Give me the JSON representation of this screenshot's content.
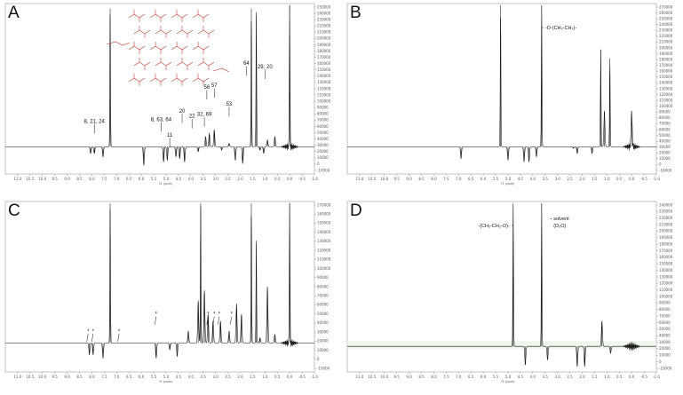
{
  "panels": [
    {
      "letter": "A",
      "chart_data": {
        "type": "line",
        "xlabel": "f1 (ppm)",
        "xlim": [
          -1.0,
          11.5
        ],
        "x_reversed": true,
        "x_ticks": [
          "11.0",
          "10.5",
          "10.0",
          "9.5",
          "9.0",
          "8.5",
          "8.0",
          "7.5",
          "7.0",
          "6.5",
          "6.0",
          "5.5",
          "5.0",
          "4.5",
          "4.0",
          "3.5",
          "3.0",
          "2.5",
          "2.0",
          "1.5",
          "1.0",
          "0.5",
          "0.0",
          "-0.5",
          "-1.0"
        ],
        "y_ticks": [
          "-10000",
          "0",
          "10000",
          "20000",
          "30000",
          "40000",
          "50000",
          "60000",
          "70000",
          "80000",
          "90000",
          "100000",
          "110000",
          "120000",
          "130000",
          "140000",
          "150000",
          "160000",
          "170000",
          "180000",
          "190000",
          "200000",
          "210000",
          "220000",
          "230000",
          "240000",
          "250000"
        ],
        "baseline": 0.16,
        "peaks": [
          {
            "x": 8.05,
            "h": 0.12
          },
          {
            "x": 7.9,
            "h": 0.12
          },
          {
            "x": 7.55,
            "h": 0.1
          },
          {
            "x": 7.26,
            "h": 0.97
          },
          {
            "x": 5.9,
            "h": 0.05
          },
          {
            "x": 5.1,
            "h": 0.07
          },
          {
            "x": 4.95,
            "h": 0.08
          },
          {
            "x": 4.6,
            "h": 0.1
          },
          {
            "x": 4.45,
            "h": 0.09
          },
          {
            "x": 4.25,
            "h": 0.07
          },
          {
            "x": 3.7,
            "h": 0.13
          },
          {
            "x": 3.4,
            "h": 0.22
          },
          {
            "x": 3.25,
            "h": 0.24
          },
          {
            "x": 3.05,
            "h": 0.26
          },
          {
            "x": 2.75,
            "h": 0.14
          },
          {
            "x": 2.45,
            "h": 0.18
          },
          {
            "x": 2.2,
            "h": 0.08
          },
          {
            "x": 1.9,
            "h": 0.06
          },
          {
            "x": 1.55,
            "h": 0.97
          },
          {
            "x": 1.35,
            "h": 0.95
          },
          {
            "x": 1.2,
            "h": 0.14
          },
          {
            "x": 1.05,
            "h": 0.12
          },
          {
            "x": 0.9,
            "h": 0.2
          },
          {
            "x": 0.6,
            "h": 0.22
          },
          {
            "x": 0.0,
            "h": 0.99
          }
        ],
        "annotations": [
          {
            "text": "8, 21, 24",
            "x": 7.9,
            "y": 0.3
          },
          {
            "text": "8, 63, 64",
            "x": 5.2,
            "y": 0.31
          },
          {
            "text": "11",
            "x": 4.85,
            "y": 0.22
          },
          {
            "text": "20",
            "x": 4.35,
            "y": 0.36
          },
          {
            "text": "22",
            "x": 3.95,
            "y": 0.33
          },
          {
            "text": "32, 69",
            "x": 3.45,
            "y": 0.34
          },
          {
            "text": "56",
            "x": 3.35,
            "y": 0.5
          },
          {
            "text": "57",
            "x": 3.05,
            "y": 0.51
          },
          {
            "text": "53",
            "x": 2.45,
            "y": 0.4
          },
          {
            "text": "64",
            "x": 1.75,
            "y": 0.64
          },
          {
            "text": "29, 20",
            "x": 1.0,
            "y": 0.62
          }
        ]
      }
    },
    {
      "letter": "B",
      "chart_data": {
        "type": "line",
        "xlabel": "f1 (ppm)",
        "xlim": [
          -1.0,
          11.5
        ],
        "x_reversed": true,
        "x_ticks": [
          "11.0",
          "10.5",
          "10.0",
          "9.5",
          "9.0",
          "8.5",
          "8.0",
          "7.5",
          "7.0",
          "6.5",
          "6.0",
          "5.5",
          "5.0",
          "4.5",
          "4.0",
          "3.5",
          "3.0",
          "2.5",
          "2.0",
          "1.5",
          "1.0",
          "0.5",
          "0.0",
          "-0.5",
          "-1.0"
        ],
        "y_ticks": [
          "-10000",
          "0",
          "10000",
          "20000",
          "30000",
          "40000",
          "50000",
          "60000",
          "70000",
          "80000",
          "90000",
          "100000",
          "110000",
          "120000",
          "130000",
          "140000",
          "150000",
          "160000",
          "170000",
          "180000",
          "190000",
          "200000",
          "210000",
          "220000",
          "230000",
          "240000",
          "250000",
          "260000",
          "270000"
        ],
        "baseline": 0.16,
        "peaks": [
          {
            "x": 7.26,
            "h": 0.16
          },
          {
            "x": 6.9,
            "h": 0.09
          },
          {
            "x": 5.3,
            "h": 0.99
          },
          {
            "x": 5.0,
            "h": 0.08
          },
          {
            "x": 4.35,
            "h": 0.07
          },
          {
            "x": 4.15,
            "h": 0.07
          },
          {
            "x": 3.85,
            "h": 0.1
          },
          {
            "x": 3.64,
            "h": 0.99
          },
          {
            "x": 3.4,
            "h": 0.16
          },
          {
            "x": 2.35,
            "h": 0.15
          },
          {
            "x": 2.2,
            "h": 0.12
          },
          {
            "x": 1.6,
            "h": 0.12
          },
          {
            "x": 1.35,
            "h": 0.16
          },
          {
            "x": 1.25,
            "h": 0.73
          },
          {
            "x": 1.1,
            "h": 0.37
          },
          {
            "x": 0.88,
            "h": 0.68
          },
          {
            "x": 0.0,
            "h": 0.37
          }
        ],
        "annotations": [
          {
            "text": "-O-(CH₂-CH₂)-",
            "x": 3.64,
            "y": 0.85
          }
        ]
      }
    },
    {
      "letter": "C",
      "chart_data": {
        "type": "line",
        "xlabel": "f1 (ppm)",
        "xlim": [
          -1.0,
          11.5
        ],
        "x_reversed": true,
        "x_ticks": [
          "11.0",
          "10.5",
          "10.0",
          "9.5",
          "9.0",
          "8.5",
          "8.0",
          "7.5",
          "7.0",
          "6.5",
          "6.0",
          "5.5",
          "5.0",
          "4.5",
          "4.0",
          "3.5",
          "3.0",
          "2.5",
          "2.0",
          "1.5",
          "1.0",
          "0.5",
          "0.0",
          "-0.5",
          "-1.0"
        ],
        "y_ticks": [
          "-10000",
          "0",
          "10000",
          "20000",
          "30000",
          "40000",
          "50000",
          "60000",
          "70000",
          "80000",
          "90000",
          "100000",
          "110000",
          "120000",
          "130000",
          "140000",
          "150000",
          "160000",
          "170000"
        ],
        "baseline": 0.17,
        "peaks": [
          {
            "x": 8.1,
            "h": 0.1
          },
          {
            "x": 7.95,
            "h": 0.1
          },
          {
            "x": 7.55,
            "h": 0.08
          },
          {
            "x": 7.26,
            "h": 0.99
          },
          {
            "x": 5.4,
            "h": 0.08
          },
          {
            "x": 4.85,
            "h": 0.13
          },
          {
            "x": 4.55,
            "h": 0.09
          },
          {
            "x": 4.1,
            "h": 0.24
          },
          {
            "x": 3.7,
            "h": 0.42
          },
          {
            "x": 3.6,
            "h": 0.99
          },
          {
            "x": 3.45,
            "h": 0.48
          },
          {
            "x": 3.3,
            "h": 0.34
          },
          {
            "x": 3.1,
            "h": 0.3
          },
          {
            "x": 2.8,
            "h": 0.3
          },
          {
            "x": 2.45,
            "h": 0.24
          },
          {
            "x": 2.15,
            "h": 0.4
          },
          {
            "x": 1.95,
            "h": 0.34
          },
          {
            "x": 1.55,
            "h": 0.99
          },
          {
            "x": 1.35,
            "h": 0.77
          },
          {
            "x": 1.2,
            "h": 0.2
          },
          {
            "x": 0.9,
            "h": 0.5
          },
          {
            "x": 0.6,
            "h": 0.22
          },
          {
            "x": 0.0,
            "h": 0.99
          }
        ],
        "annotations": [
          {
            "text": "*",
            "x": 8.15,
            "y": 0.23
          },
          {
            "text": "*",
            "x": 7.95,
            "y": 0.23
          },
          {
            "text": "*",
            "x": 6.9,
            "y": 0.23
          },
          {
            "text": "*",
            "x": 5.4,
            "y": 0.33
          },
          {
            "text": "*",
            "x": 3.3,
            "y": 0.33
          },
          {
            "text": "*",
            "x": 3.05,
            "y": 0.33
          },
          {
            "text": "*",
            "x": 2.85,
            "y": 0.33
          },
          {
            "text": "*",
            "x": 2.35,
            "y": 0.33
          }
        ]
      }
    },
    {
      "letter": "D",
      "chart_data": {
        "type": "line",
        "xlabel": "f1 (ppm)",
        "xlim": [
          -1.0,
          11.5
        ],
        "x_reversed": true,
        "x_ticks": [
          "11.0",
          "10.5",
          "10.0",
          "9.5",
          "9.0",
          "8.5",
          "8.0",
          "7.5",
          "7.0",
          "6.5",
          "6.0",
          "5.5",
          "5.0",
          "4.5",
          "4.0",
          "3.5",
          "3.0",
          "2.5",
          "2.0",
          "1.5",
          "1.0",
          "0.5",
          "0.0",
          "-0.5",
          "-1.0"
        ],
        "y_ticks": [
          "-10000",
          "0",
          "10000",
          "20000",
          "30000",
          "40000",
          "50000",
          "60000",
          "70000",
          "80000",
          "90000",
          "100000",
          "110000",
          "120000",
          "130000",
          "140000",
          "150000",
          "160000",
          "170000",
          "180000",
          "190000",
          "200000",
          "210000",
          "220000",
          "230000",
          "240000"
        ],
        "baseline": 0.15,
        "peaks": [
          {
            "x": 4.79,
            "h": 0.99
          },
          {
            "x": 4.3,
            "h": 0.04
          },
          {
            "x": 3.64,
            "h": 0.99
          },
          {
            "x": 3.4,
            "h": 0.07
          },
          {
            "x": 2.2,
            "h": 0.03
          },
          {
            "x": 1.9,
            "h": 0.03
          },
          {
            "x": 1.2,
            "h": 0.3
          },
          {
            "x": 0.85,
            "h": 0.11
          }
        ],
        "annotations": [
          {
            "text": "-(CH₂-CH₂-O)-",
            "x": 4.79,
            "y": 0.85
          },
          {
            "text": "solvent",
            "x": 3.3,
            "y": 0.89
          },
          {
            "text": "(D₂O)",
            "x": 3.3,
            "y": 0.85
          }
        ]
      }
    }
  ]
}
